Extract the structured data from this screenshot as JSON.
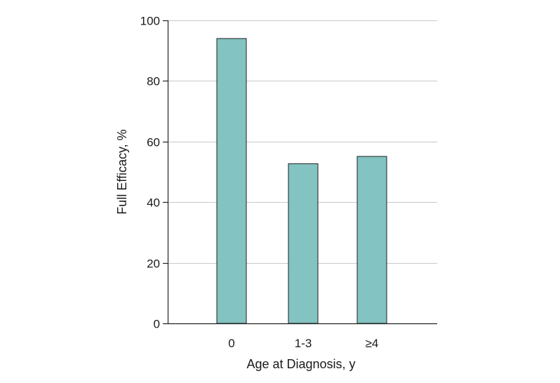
{
  "colors": {
    "bar_fill": "#83c3c1",
    "bar_stroke": "#1f1f1f",
    "grid": "#c9c9c9",
    "axis": "#222222"
  },
  "chart_data": {
    "type": "bar",
    "title": "",
    "xlabel": "Age at Diagnosis, y",
    "ylabel": "Full Efficacy, %",
    "categories": [
      "0",
      "1-3",
      "≥4"
    ],
    "values": [
      94,
      52.7,
      55.1
    ],
    "ylim": [
      0,
      100
    ],
    "yticks": [
      0,
      20,
      40,
      60,
      80,
      100
    ],
    "ytick_labels": [
      "0",
      "20",
      "40",
      "60",
      "80",
      "100"
    ],
    "grid": true,
    "legend": "none"
  }
}
